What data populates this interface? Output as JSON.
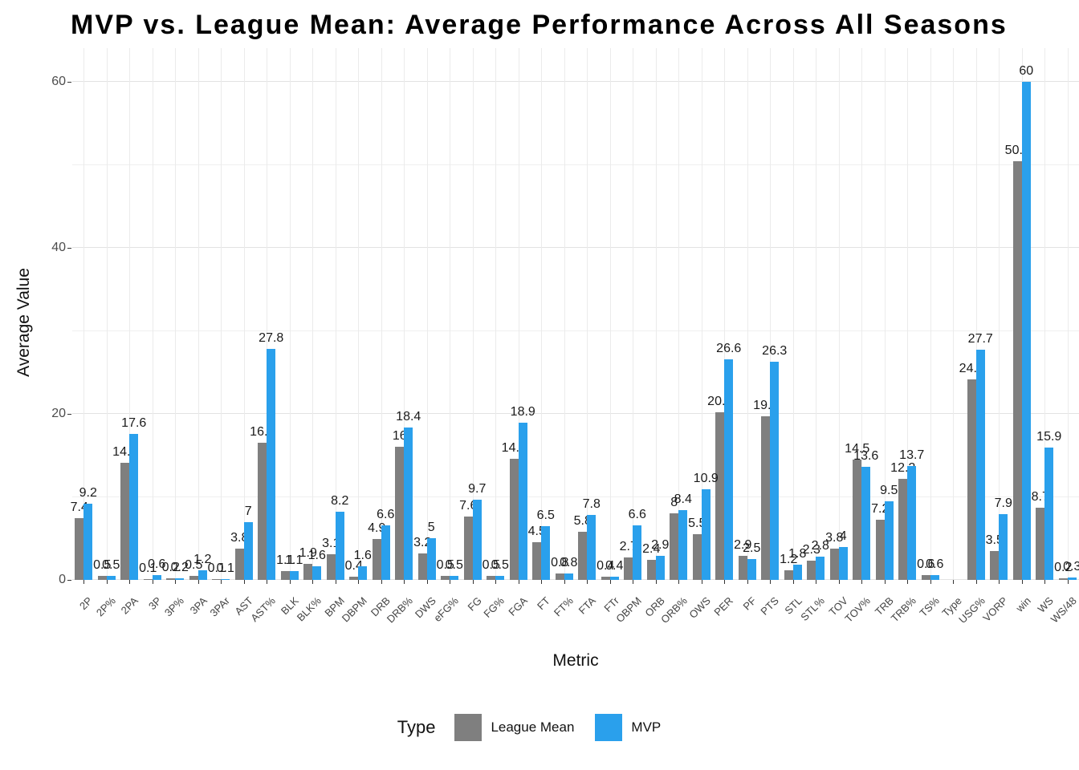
{
  "title": "MVP vs. League Mean: Average Performance Across All Seasons",
  "axes": {
    "x_title": "Metric",
    "y_title": "Average Value",
    "y_ticks": [
      0,
      20,
      40,
      60
    ],
    "y_minor_ticks": [
      10,
      30,
      50
    ]
  },
  "legend": {
    "title": "Type",
    "items": [
      {
        "label": "League Mean",
        "color": "#7f7f7f"
      },
      {
        "label": "MVP",
        "color": "#2aa0ec"
      }
    ]
  },
  "colors": {
    "league_mean_bar": "#7f7f7f",
    "mvp_bar": "#2aa0ec",
    "grid_major": "#e2e2e2",
    "grid_minor": "#efefef",
    "tick_text": "#4d4d4d"
  },
  "chart_data": {
    "type": "bar",
    "title": "MVP vs. League Mean: Average Performance Across All Seasons",
    "xlabel": "Metric",
    "ylabel": "Average Value",
    "ylim": [
      0,
      64
    ],
    "grid": "horizontal major 0/20/40/60 + minor 10/30/50, light vertical line per category",
    "legend_position": "bottom",
    "value_labels": true,
    "categories": [
      "2P",
      "2P%",
      "2PA",
      "3P",
      "3P%",
      "3PA",
      "3PAr",
      "AST",
      "AST%",
      "BLK",
      "BLK%",
      "BPM",
      "DBPM",
      "DRB",
      "DRB%",
      "DWS",
      "eFG%",
      "FG",
      "FG%",
      "FGA",
      "FT",
      "FT%",
      "FTA",
      "FTr",
      "OBPM",
      "ORB",
      "ORB%",
      "OWS",
      "PER",
      "PF",
      "PTS",
      "STL",
      "STL%",
      "TOV",
      "TOV%",
      "TRB",
      "TRB%",
      "TS%",
      "Type",
      "USG%",
      "VORP",
      "win",
      "WS",
      "WS/48"
    ],
    "series": [
      {
        "name": "League Mean",
        "color": "#7f7f7f",
        "values": [
          7.4,
          0.5,
          14.1,
          0.1,
          0.2,
          0.5,
          0.1,
          3.8,
          16.5,
          1.1,
          1.9,
          3.1,
          0.4,
          4.9,
          16,
          3.2,
          0.5,
          7.6,
          0.5,
          14.6,
          4.5,
          0.8,
          5.8,
          0.4,
          2.7,
          2.4,
          8,
          5.5,
          20.2,
          2.9,
          19.7,
          1.2,
          2.3,
          3.8,
          14.5,
          7.2,
          12.2,
          0.6,
          null,
          24.2,
          3.5,
          50.4,
          8.7,
          0.2
        ]
      },
      {
        "name": "MVP",
        "color": "#2aa0ec",
        "values": [
          9.2,
          0.5,
          17.6,
          0.6,
          0.2,
          1.2,
          0.1,
          7,
          27.8,
          1.1,
          1.6,
          8.2,
          1.6,
          6.6,
          18.4,
          5,
          0.5,
          9.7,
          0.5,
          18.9,
          6.5,
          0.8,
          7.8,
          0.4,
          6.6,
          2.9,
          8.4,
          10.9,
          26.6,
          2.5,
          26.3,
          1.8,
          2.8,
          4,
          13.6,
          9.5,
          13.7,
          0.6,
          null,
          27.7,
          7.9,
          60,
          15.9,
          0.3
        ]
      }
    ]
  }
}
